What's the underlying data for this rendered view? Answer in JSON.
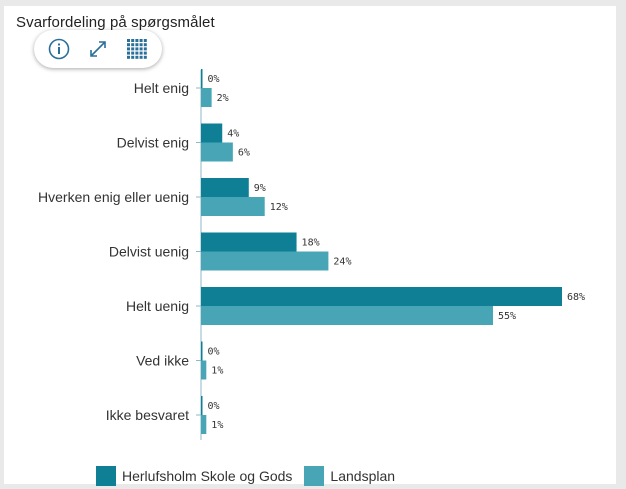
{
  "title": "Svarfordeling på spørgsmålet",
  "toolbar": {
    "info_icon": "info-icon",
    "expand_icon": "expand-icon",
    "table_icon": "table-grid-icon"
  },
  "colors": {
    "series1": "#0e7f95",
    "series2": "#47a5b5"
  },
  "chart_data": {
    "type": "bar",
    "orientation": "horizontal",
    "categories": [
      "Helt enig",
      "Delvist enig",
      "Hverken enig eller uenig",
      "Delvist uenig",
      "Helt uenig",
      "Ved ikke",
      "Ikke besvaret"
    ],
    "series": [
      {
        "name": "Herlufsholm Skole og Gods",
        "values": [
          0,
          4,
          9,
          18,
          68,
          0,
          0
        ],
        "labels": [
          "0%",
          "4%",
          "9%",
          "18%",
          "68%",
          "0%",
          "0%"
        ]
      },
      {
        "name": "Landsplan",
        "values": [
          2,
          6,
          12,
          24,
          55,
          1,
          1
        ],
        "labels": [
          "2%",
          "6%",
          "12%",
          "24%",
          "55%",
          "1%",
          "1%"
        ]
      }
    ],
    "xlim": [
      0,
      100
    ],
    "grid": false,
    "legend": "bottom"
  }
}
